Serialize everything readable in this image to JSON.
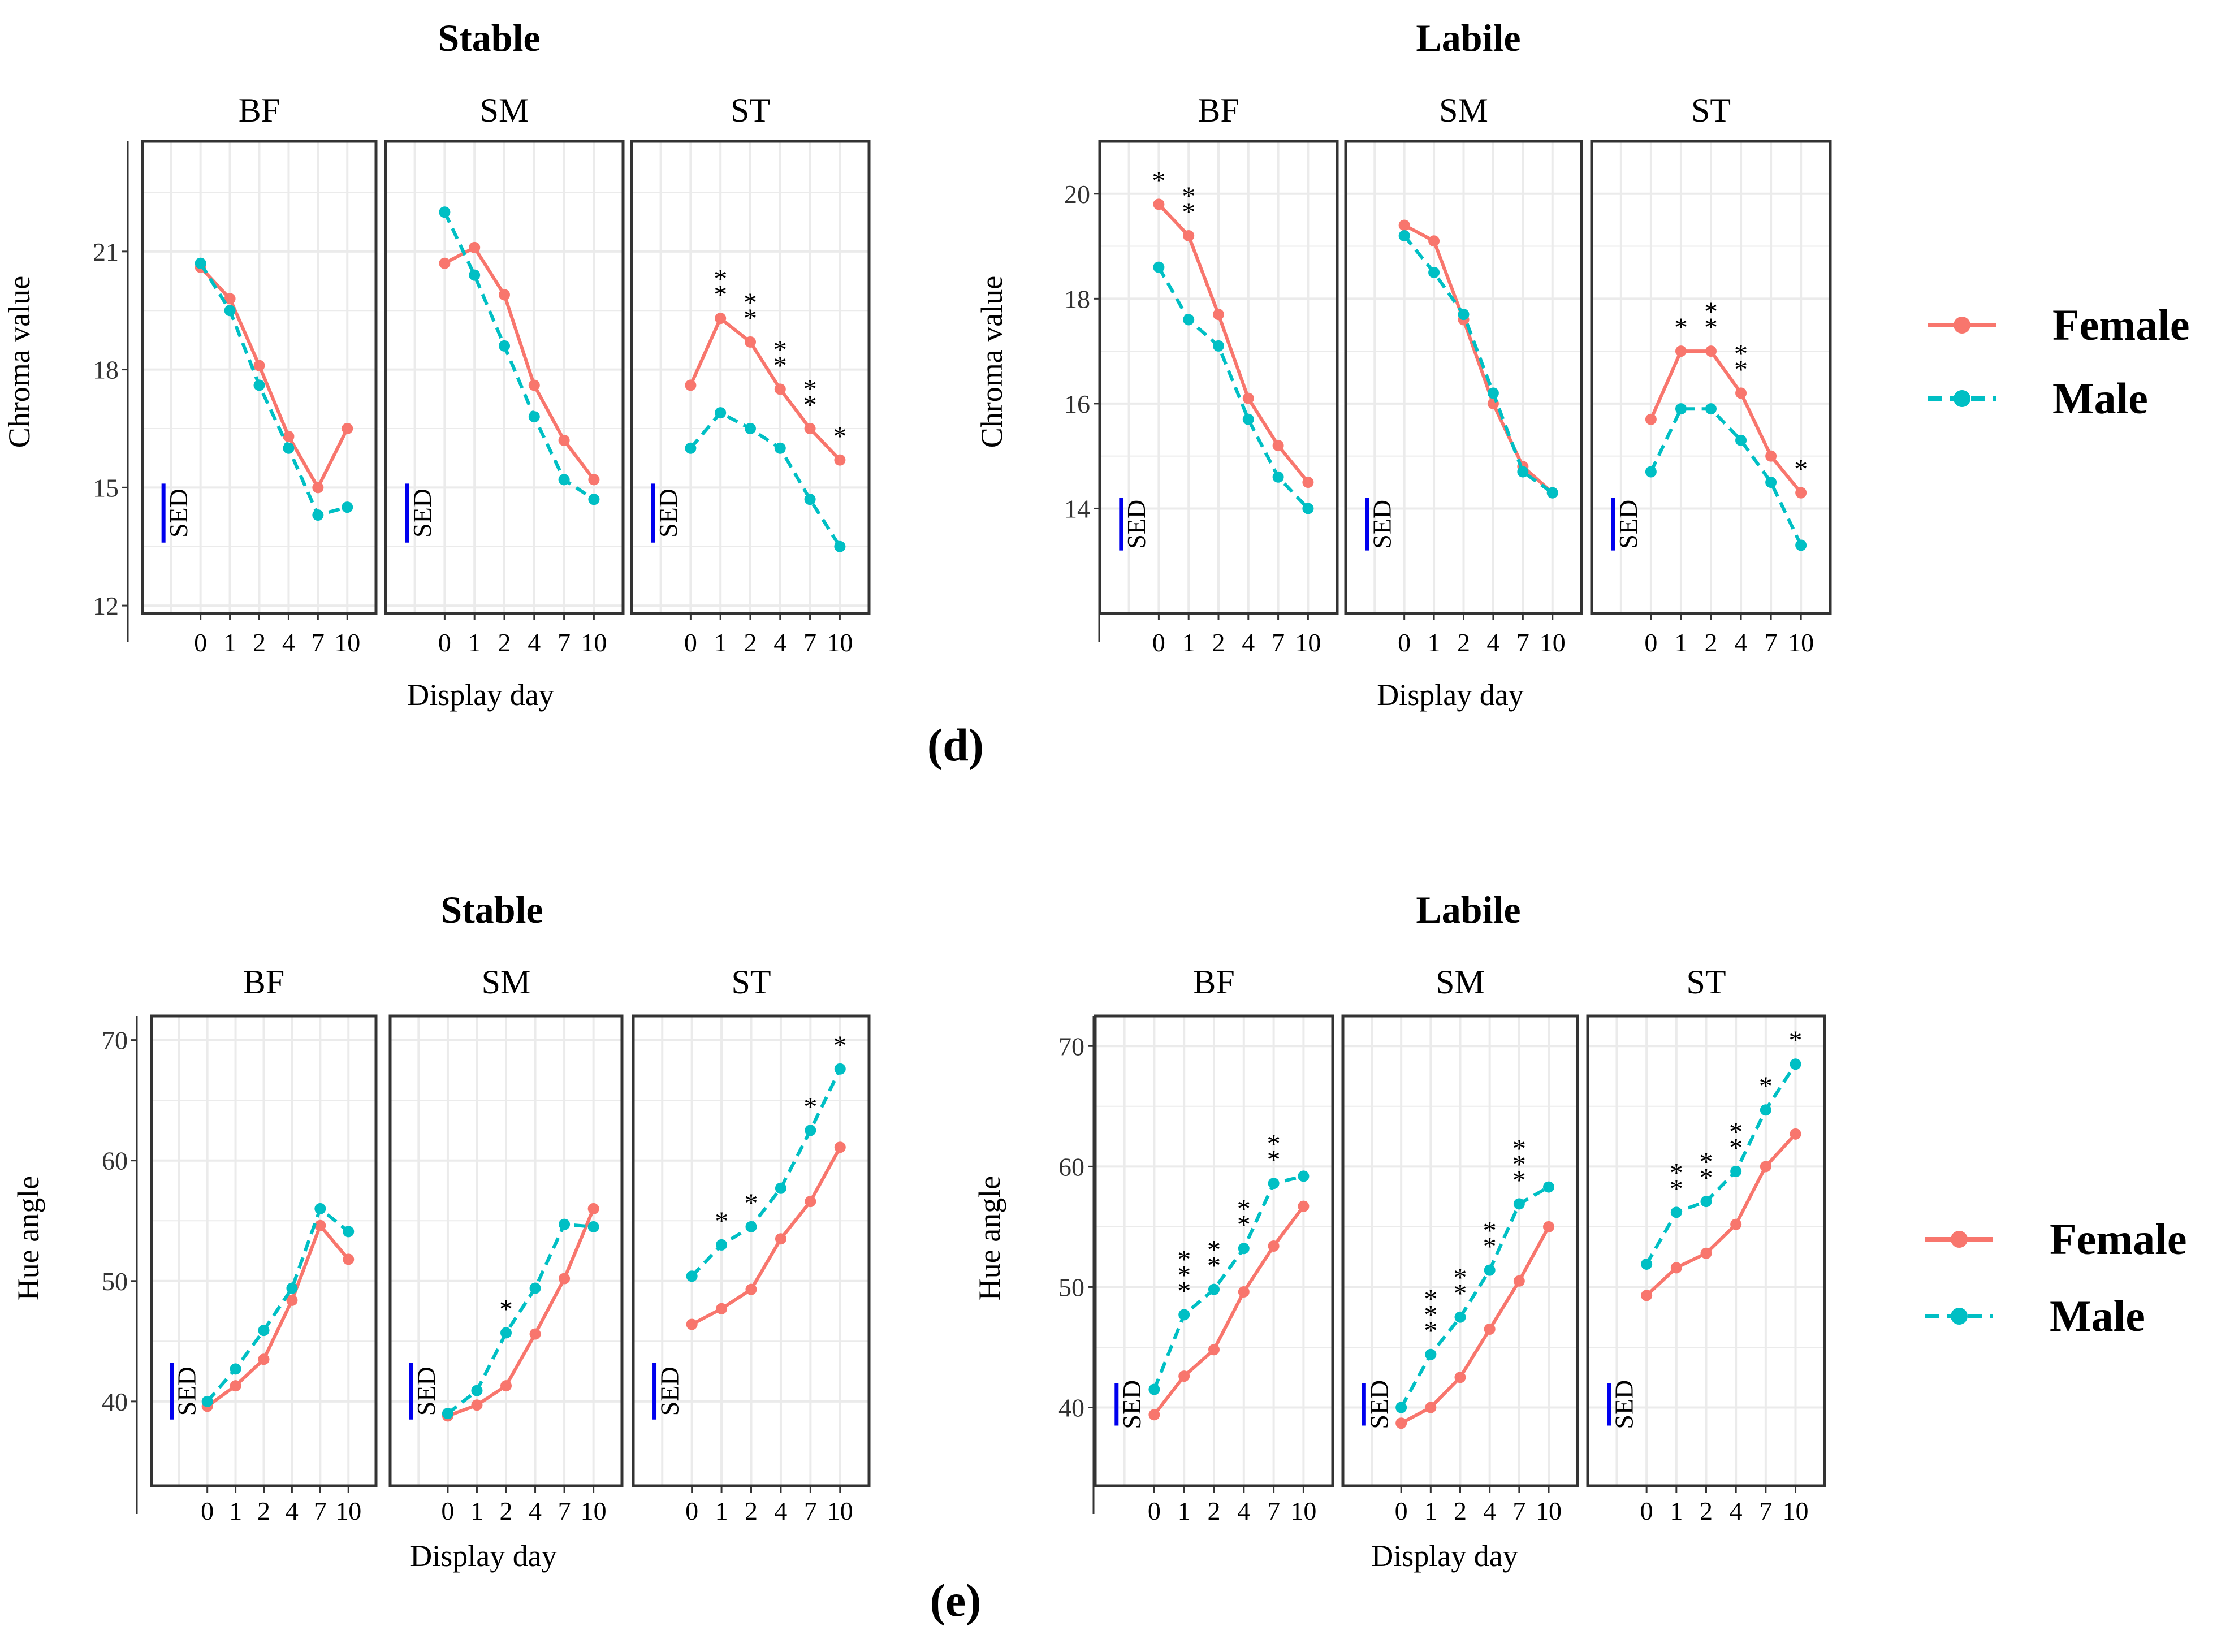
{
  "colors": {
    "female": "#F8766D",
    "male": "#00BFC4",
    "sed": "#0000EE",
    "grid": "#EBEBEB",
    "frame": "#333333"
  },
  "figure": {
    "x_axis_title": "Display day",
    "sed_label": "SED",
    "legend": {
      "female": "Female",
      "male": "Male"
    }
  },
  "chart_data": [
    {
      "panel_label": "(d)",
      "type": "line",
      "metric": "Chroma value",
      "ylabel": "Chroma value",
      "days": [
        "0",
        "1",
        "2",
        "4",
        "7",
        "10"
      ],
      "groups": [
        {
          "title": "Stable",
          "ylim": [
            11.8,
            23.8
          ],
          "yticks": [
            12,
            15,
            18,
            21
          ],
          "muscles": [
            {
              "name": "BF",
              "sed": [
                13.6,
                15.1
              ],
              "series": [
                {
                  "name": "Female",
                  "values": [
                    20.6,
                    19.8,
                    18.1,
                    16.3,
                    15.0,
                    16.5
                  ]
                },
                {
                  "name": "Male",
                  "values": [
                    20.7,
                    19.5,
                    17.6,
                    16.0,
                    14.3,
                    14.5
                  ]
                }
              ],
              "stars": [
                "",
                "",
                "",
                "",
                "",
                ""
              ]
            },
            {
              "name": "SM",
              "sed": [
                13.6,
                15.1
              ],
              "series": [
                {
                  "name": "Female",
                  "values": [
                    20.7,
                    21.1,
                    19.9,
                    17.6,
                    16.2,
                    15.2
                  ]
                },
                {
                  "name": "Male",
                  "values": [
                    22.0,
                    20.4,
                    18.6,
                    16.8,
                    15.2,
                    14.7
                  ]
                }
              ],
              "stars": [
                "",
                "",
                "",
                "",
                "",
                ""
              ]
            },
            {
              "name": "ST",
              "sed": [
                13.6,
                15.1
              ],
              "series": [
                {
                  "name": "Female",
                  "values": [
                    17.6,
                    19.3,
                    18.7,
                    17.5,
                    16.5,
                    15.7
                  ]
                },
                {
                  "name": "Male",
                  "values": [
                    16.0,
                    16.9,
                    16.5,
                    16.0,
                    14.7,
                    13.5
                  ]
                }
              ],
              "stars": [
                "",
                "**",
                "**",
                "**",
                "**",
                "*"
              ]
            }
          ]
        },
        {
          "title": "Labile",
          "ylim": [
            12.0,
            21.0
          ],
          "yticks": [
            14,
            16,
            18,
            20
          ],
          "muscles": [
            {
              "name": "BF",
              "sed": [
                13.2,
                14.2
              ],
              "series": [
                {
                  "name": "Female",
                  "values": [
                    19.8,
                    19.2,
                    17.7,
                    16.1,
                    15.2,
                    14.5
                  ]
                },
                {
                  "name": "Male",
                  "values": [
                    18.6,
                    17.6,
                    17.1,
                    15.7,
                    14.6,
                    14.0
                  ]
                }
              ],
              "stars": [
                "*",
                "**",
                "",
                "",
                "",
                ""
              ]
            },
            {
              "name": "SM",
              "sed": [
                13.2,
                14.2
              ],
              "series": [
                {
                  "name": "Female",
                  "values": [
                    19.4,
                    19.1,
                    17.6,
                    16.0,
                    14.8,
                    14.3
                  ]
                },
                {
                  "name": "Male",
                  "values": [
                    19.2,
                    18.5,
                    17.7,
                    16.2,
                    14.7,
                    14.3
                  ]
                }
              ],
              "stars": [
                "",
                "",
                "",
                "",
                "",
                ""
              ]
            },
            {
              "name": "ST",
              "sed": [
                13.2,
                14.2
              ],
              "series": [
                {
                  "name": "Female",
                  "values": [
                    15.7,
                    17.0,
                    17.0,
                    16.2,
                    15.0,
                    14.3
                  ]
                },
                {
                  "name": "Male",
                  "values": [
                    14.7,
                    15.9,
                    15.9,
                    15.3,
                    14.5,
                    13.3
                  ]
                }
              ],
              "stars": [
                "",
                "*",
                "**",
                "**",
                "",
                "*"
              ]
            }
          ]
        }
      ]
    },
    {
      "panel_label": "(e)",
      "type": "line",
      "metric": "Hue angle",
      "ylabel": "Hue angle",
      "days": [
        "0",
        "1",
        "2",
        "4",
        "7",
        "10"
      ],
      "groups": [
        {
          "title": "Stable",
          "ylim": [
            33.0,
            72.0
          ],
          "yticks": [
            40,
            50,
            60,
            70
          ],
          "muscles": [
            {
              "name": "BF",
              "sed": [
                38.5,
                43.2
              ],
              "series": [
                {
                  "name": "Female",
                  "values": [
                    39.6,
                    41.3,
                    43.5,
                    48.4,
                    54.6,
                    51.8
                  ]
                },
                {
                  "name": "Male",
                  "values": [
                    40.0,
                    42.7,
                    45.9,
                    49.4,
                    56.0,
                    54.1
                  ]
                }
              ],
              "stars": [
                "",
                "",
                "",
                "",
                "",
                ""
              ]
            },
            {
              "name": "SM",
              "sed": [
                38.5,
                43.2
              ],
              "series": [
                {
                  "name": "Female",
                  "values": [
                    38.8,
                    39.7,
                    41.3,
                    45.6,
                    50.2,
                    56.0
                  ]
                },
                {
                  "name": "Male",
                  "values": [
                    39.0,
                    40.9,
                    45.7,
                    49.4,
                    54.7,
                    54.5
                  ]
                }
              ],
              "stars": [
                "",
                "",
                "*",
                "",
                "",
                ""
              ]
            },
            {
              "name": "ST",
              "sed": [
                38.5,
                43.2
              ],
              "series": [
                {
                  "name": "Female",
                  "values": [
                    46.4,
                    47.7,
                    49.3,
                    53.5,
                    56.6,
                    61.1
                  ]
                },
                {
                  "name": "Male",
                  "values": [
                    50.4,
                    53.0,
                    54.5,
                    57.7,
                    62.5,
                    67.6
                  ]
                }
              ],
              "stars": [
                "",
                "*",
                "*",
                "",
                "*",
                "*"
              ]
            }
          ]
        },
        {
          "title": "Labile",
          "ylim": [
            33.5,
            72.5
          ],
          "yticks": [
            40,
            50,
            60,
            70
          ],
          "muscles": [
            {
              "name": "BF",
              "sed": [
                38.5,
                42.0
              ],
              "series": [
                {
                  "name": "Female",
                  "values": [
                    39.4,
                    42.6,
                    44.8,
                    49.6,
                    53.4,
                    56.7
                  ]
                },
                {
                  "name": "Male",
                  "values": [
                    41.5,
                    47.7,
                    49.8,
                    53.2,
                    58.6,
                    59.2
                  ]
                }
              ],
              "stars": [
                "",
                "***",
                "**",
                "**",
                "**",
                ""
              ]
            },
            {
              "name": "SM",
              "sed": [
                38.5,
                42.0
              ],
              "series": [
                {
                  "name": "Female",
                  "values": [
                    38.7,
                    40.0,
                    42.5,
                    46.5,
                    50.5,
                    55.0
                  ]
                },
                {
                  "name": "Male",
                  "values": [
                    40.0,
                    44.4,
                    47.5,
                    51.4,
                    56.9,
                    58.3
                  ]
                }
              ],
              "stars": [
                "",
                "***",
                "**",
                "**",
                "***",
                ""
              ]
            },
            {
              "name": "ST",
              "sed": [
                38.5,
                42.0
              ],
              "series": [
                {
                  "name": "Female",
                  "values": [
                    49.3,
                    51.6,
                    52.8,
                    55.2,
                    60.0,
                    62.7
                  ]
                },
                {
                  "name": "Male",
                  "values": [
                    51.9,
                    56.2,
                    57.1,
                    59.6,
                    64.7,
                    68.5
                  ]
                }
              ],
              "stars": [
                "",
                "**",
                "**",
                "**",
                "*",
                "*"
              ]
            }
          ]
        }
      ]
    }
  ]
}
